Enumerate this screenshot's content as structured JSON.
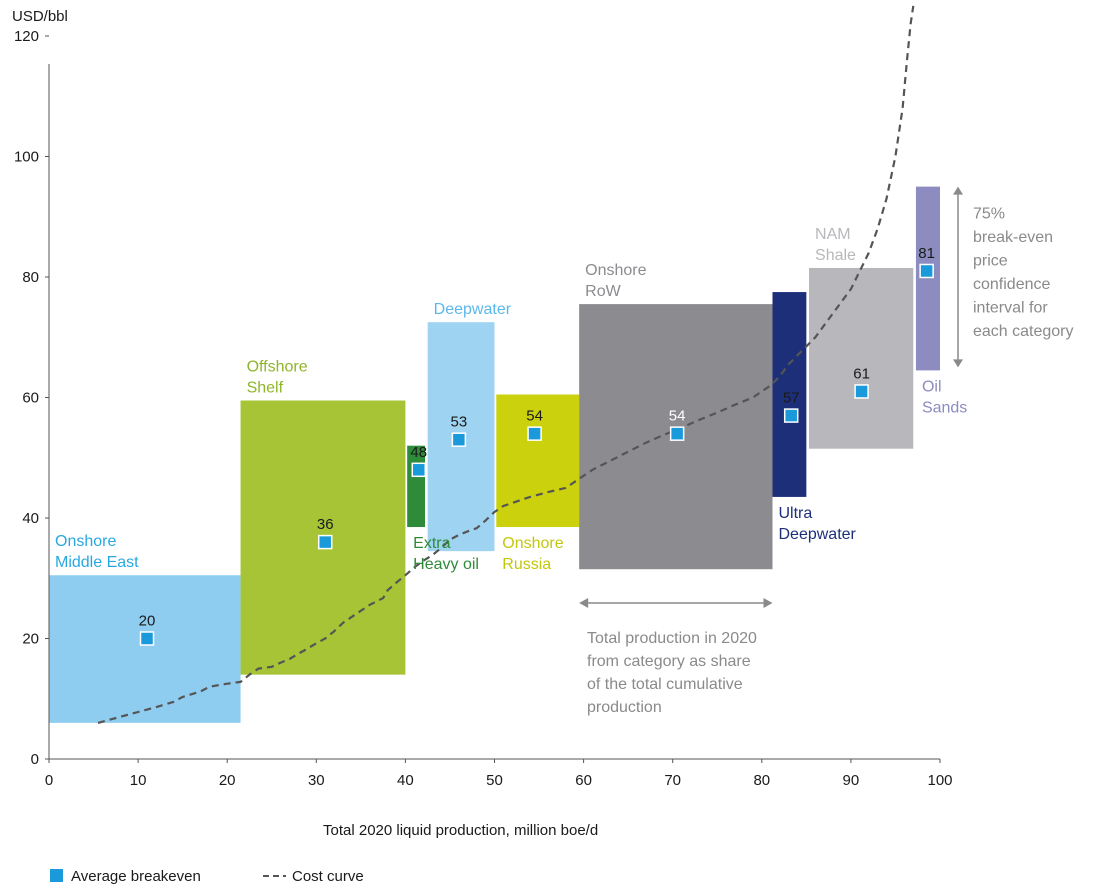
{
  "chart_data": {
    "type": "bar",
    "ylabel": "USD/bbl",
    "xlabel": "Total 2020 liquid production, million boe/d",
    "xlim": [
      0,
      100
    ],
    "ylim": [
      0,
      120
    ],
    "xticks": [
      "0",
      "10",
      "20",
      "30",
      "40",
      "50",
      "60",
      "70",
      "80",
      "90",
      "100"
    ],
    "yticks": [
      "0",
      "20",
      "40",
      "60",
      "80",
      "100",
      "120"
    ],
    "grid": false,
    "legend_position": "bottom-left",
    "legend": {
      "avg_label": "Average breakeven",
      "curve_label": "Cost curve"
    },
    "categories": [
      {
        "label": [
          "Onshore",
          "Middle East"
        ],
        "x0": 0,
        "x1": 21.5,
        "low": 6,
        "high": 30.5,
        "avg": 20,
        "avg_x": 11,
        "color": "#8ECDF0",
        "label_color": "#29A8E0",
        "label_pos": "above-left"
      },
      {
        "label": [
          "Offshore",
          "Shelf"
        ],
        "x0": 21.5,
        "x1": 40,
        "low": 14,
        "high": 59.5,
        "avg": 36,
        "avg_x": 31,
        "color": "#A6C436",
        "label_color": "#8FB52A",
        "label_pos": "above-left"
      },
      {
        "label": [
          "Extra",
          "Heavy oil"
        ],
        "x0": 40.2,
        "x1": 42.2,
        "low": 38.5,
        "high": 52,
        "avg": 48,
        "avg_x": 41.5,
        "color": "#2E8B3A",
        "label_color": "#2E8B3A",
        "label_pos": "below-left"
      },
      {
        "label": [
          "Deepwater"
        ],
        "x0": 42.5,
        "x1": 50,
        "low": 34.5,
        "high": 72.5,
        "avg": 53,
        "avg_x": 46,
        "color": "#9FD3F2",
        "label_color": "#5BB8EA",
        "label_pos": "above-left"
      },
      {
        "label": [
          "Onshore",
          "Russia"
        ],
        "x0": 50.2,
        "x1": 59.5,
        "low": 38.5,
        "high": 60.5,
        "avg": 54,
        "avg_x": 54.5,
        "color": "#CCD10E",
        "label_color": "#C2C70D",
        "label_pos": "below-left"
      },
      {
        "label": [
          "Onshore",
          "RoW"
        ],
        "x0": 59.5,
        "x1": 81.2,
        "low": 31.5,
        "high": 75.5,
        "avg": 54,
        "avg_x": 70.5,
        "color": "#8C8C90",
        "label_color": "#8C8C90",
        "label_pos": "above-left"
      },
      {
        "label": [
          "Ultra",
          "Deepwater"
        ],
        "x0": 81.2,
        "x1": 85,
        "low": 43.5,
        "high": 77.5,
        "avg": 57,
        "avg_x": 83.3,
        "color": "#1E2F7A",
        "label_color": "#1E2F7A",
        "label_pos": "below-left"
      },
      {
        "label": [
          "NAM",
          "Shale"
        ],
        "x0": 85.3,
        "x1": 97,
        "low": 51.5,
        "high": 81.5,
        "avg": 61,
        "avg_x": 91.2,
        "color": "#B8B8BC",
        "label_color": "#B8B8BC",
        "label_pos": "above-left"
      },
      {
        "label": [
          "Oil",
          "Sands"
        ],
        "x0": 97.3,
        "x1": 100,
        "low": 64.5,
        "high": 95,
        "avg": 81,
        "avg_x": 98.5,
        "color": "#8C8CC0",
        "label_color": "#8C8CC0",
        "label_pos": "below-left"
      }
    ],
    "cost_curve": [
      [
        5.5,
        6
      ],
      [
        8,
        7
      ],
      [
        10,
        7.8
      ],
      [
        12,
        8.6
      ],
      [
        14,
        9.5
      ],
      [
        15,
        10.3
      ],
      [
        17,
        11.2
      ],
      [
        18,
        12
      ],
      [
        20,
        12.5
      ],
      [
        21.5,
        12.8
      ],
      [
        22.5,
        14
      ],
      [
        23.5,
        15
      ],
      [
        25,
        15.3
      ],
      [
        26,
        16
      ],
      [
        27,
        16.6
      ],
      [
        28,
        17.5
      ],
      [
        29,
        18.3
      ],
      [
        30,
        19.2
      ],
      [
        31,
        20
      ],
      [
        32,
        21.2
      ],
      [
        33,
        22.6
      ],
      [
        34,
        23.6
      ],
      [
        35,
        24.6
      ],
      [
        36,
        25.6
      ],
      [
        37.5,
        26.7
      ],
      [
        38,
        28
      ],
      [
        39,
        29.3
      ],
      [
        40,
        30.5
      ],
      [
        41,
        31.8
      ],
      [
        42,
        32.9
      ],
      [
        43,
        33.8
      ],
      [
        44,
        35
      ],
      [
        45,
        36.4
      ],
      [
        46,
        37.2
      ],
      [
        47,
        37.8
      ],
      [
        48,
        38.3
      ],
      [
        49,
        39.6
      ],
      [
        50,
        41
      ],
      [
        51,
        42
      ],
      [
        52,
        42.5
      ],
      [
        54,
        43.5
      ],
      [
        56,
        44.3
      ],
      [
        58,
        45
      ],
      [
        59.5,
        46.5
      ],
      [
        61,
        48
      ],
      [
        63,
        49.5
      ],
      [
        65,
        51
      ],
      [
        67,
        52.5
      ],
      [
        69,
        53.8
      ],
      [
        71,
        55
      ],
      [
        73,
        56.3
      ],
      [
        75,
        57.5
      ],
      [
        77,
        58.8
      ],
      [
        79,
        60
      ],
      [
        81,
        62
      ],
      [
        82,
        63.5
      ],
      [
        83,
        65.5
      ],
      [
        84,
        67
      ],
      [
        85,
        68.5
      ],
      [
        86,
        70
      ],
      [
        87,
        72
      ],
      [
        88,
        74
      ],
      [
        89,
        76
      ],
      [
        90,
        78
      ],
      [
        91,
        81
      ],
      [
        92,
        84
      ],
      [
        93,
        88
      ],
      [
        94,
        93
      ],
      [
        95,
        100
      ],
      [
        95.8,
        108
      ],
      [
        96.3,
        116
      ],
      [
        96.7,
        122
      ],
      [
        97,
        125
      ]
    ],
    "annotations": {
      "range": {
        "label": [
          "75%",
          "break-even",
          "price",
          "confidence",
          "interval for",
          "each category"
        ],
        "y_low": 65,
        "y_high": 95
      },
      "width": {
        "label": [
          "Total production in 2020",
          "from category as share",
          "of the total cumulative",
          "production"
        ],
        "x0": 59.5,
        "x1": 81.2
      }
    },
    "colors": {
      "avg_marker": "#1A9ADB",
      "axis": "#555555",
      "curve": "#555555",
      "annotation": "#8A8A8A"
    }
  }
}
